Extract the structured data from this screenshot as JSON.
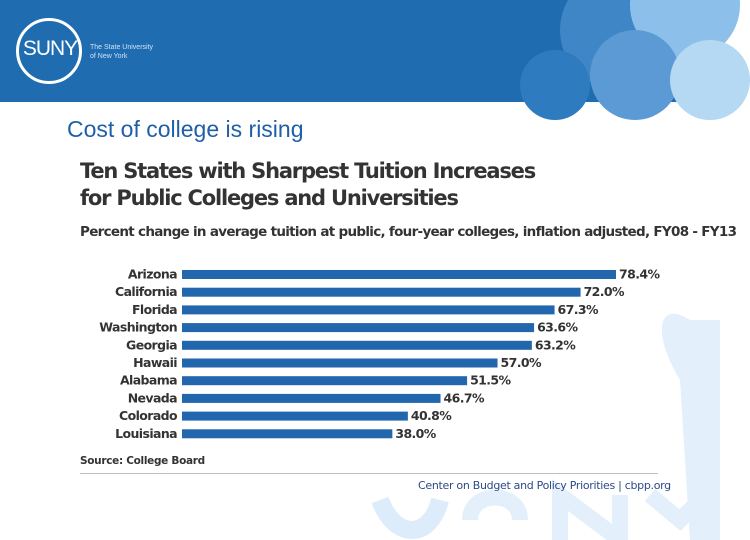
{
  "header": {
    "logo_text": "SUNY",
    "tagline_line1": "The State University",
    "tagline_line2": "of New York"
  },
  "slide": {
    "title": "Cost of college is rising"
  },
  "colors": {
    "banner": "#1f6cb1",
    "bar": "#2266ad",
    "title": "#1f5fa8"
  },
  "chart_data": {
    "type": "bar",
    "orientation": "horizontal",
    "title": "Ten States with Sharpest Tuition Increases for Public Colleges and Universities",
    "title_line1": "Ten States with Sharpest Tuition Increases",
    "title_line2": "for Public Colleges and Universities",
    "subtitle": "Percent change in average tuition at public, four-year colleges, inflation adjusted, FY08 - FY13",
    "categories": [
      "Arizona",
      "California",
      "Florida",
      "Washington",
      "Georgia",
      "Hawaii",
      "Alabama",
      "Nevada",
      "Colorado",
      "Louisiana"
    ],
    "values": [
      78.4,
      72.0,
      67.3,
      63.6,
      63.2,
      57.0,
      51.5,
      46.7,
      40.8,
      38.0
    ],
    "value_labels": [
      "78.4%",
      "72.0%",
      "67.3%",
      "63.6%",
      "63.2%",
      "57.0%",
      "51.5%",
      "46.7%",
      "40.8%",
      "38.0%"
    ],
    "xlim": [
      0,
      80
    ],
    "unit": "%",
    "grid": false,
    "source": "Source: College Board",
    "credit": "Center on Budget and Policy Priorities | cbpp.org"
  }
}
